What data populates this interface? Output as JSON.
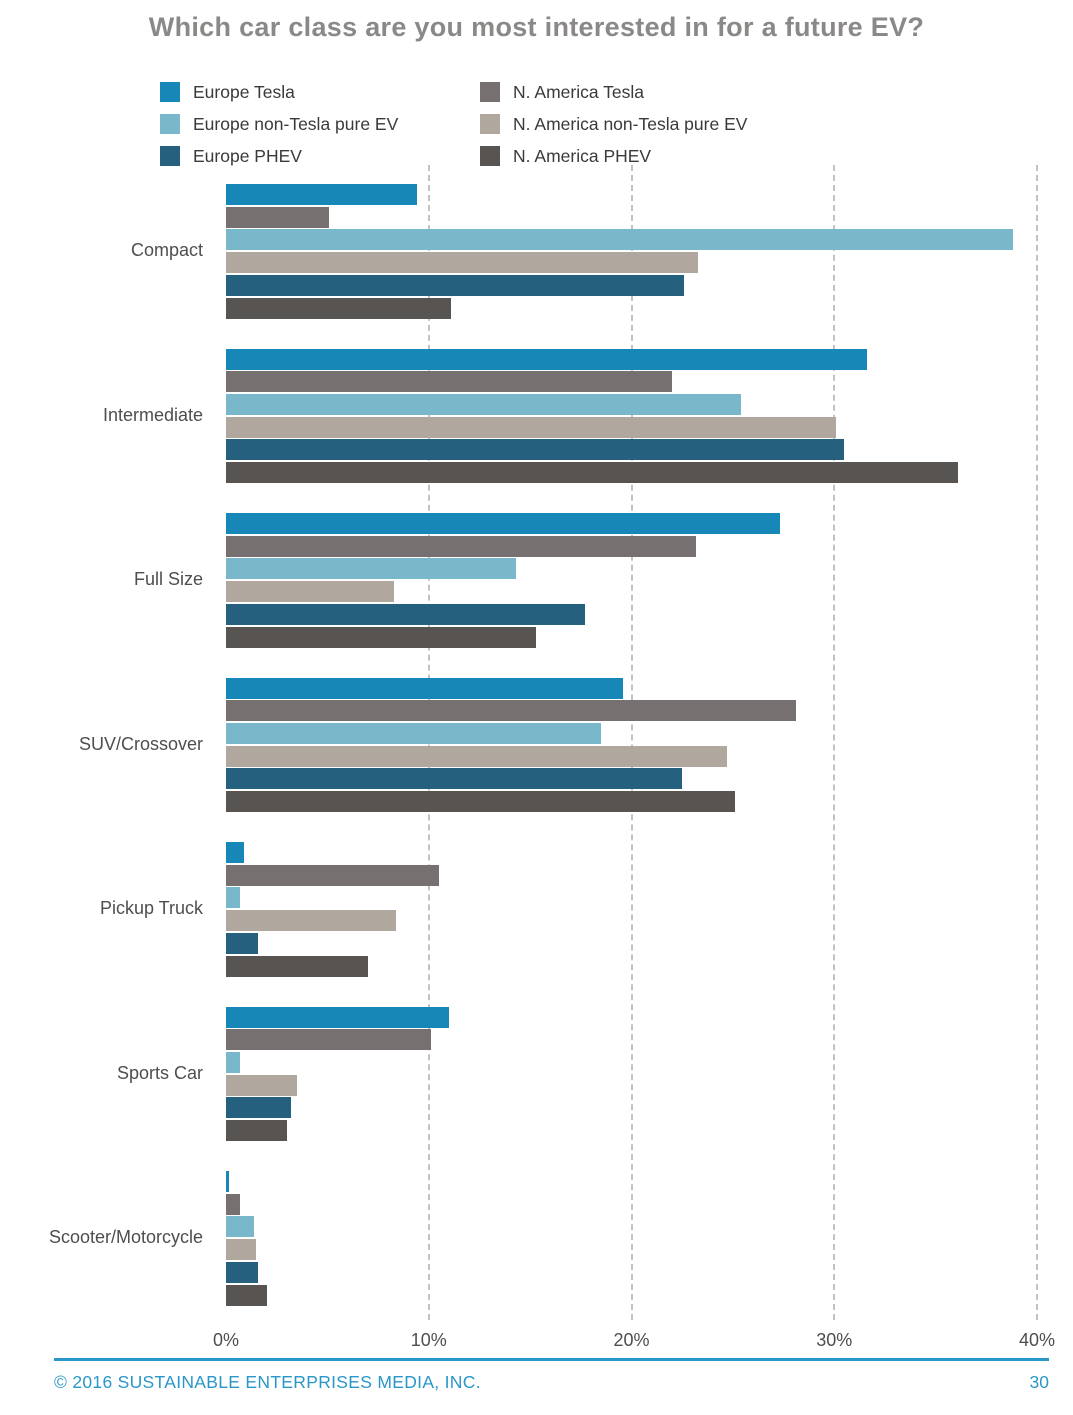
{
  "title": "Which car class are you most interested in for a future EV?",
  "colors": {
    "europe_tesla": "#1787b7",
    "europe_non_tesla": "#79b7ca",
    "europe_phev": "#25617f",
    "na_tesla": "#767170",
    "na_non_tesla": "#b0a79e",
    "na_phev": "#585452",
    "gridline": "#c2c2c2",
    "title_text": "#8a8988",
    "axis_text": "#4e4e4e",
    "footer_accent": "#2a97c9"
  },
  "legend": {
    "columns": [
      [
        {
          "label": "Europe Tesla",
          "color": "europe_tesla"
        },
        {
          "label": "Europe non-Tesla pure EV",
          "color": "europe_non_tesla"
        },
        {
          "label": "Europe PHEV",
          "color": "europe_phev"
        }
      ],
      [
        {
          "label": "N. America Tesla",
          "color": "na_tesla"
        },
        {
          "label": "N. America non-Tesla pure EV",
          "color": "na_non_tesla"
        },
        {
          "label": "N. America PHEV",
          "color": "na_phev"
        }
      ]
    ]
  },
  "chart_data": {
    "type": "bar",
    "orientation": "horizontal",
    "title": "Which car class are you most interested in for a future EV?",
    "categories": [
      "Compact",
      "Intermediate",
      "Full Size",
      "SUV/Crossover",
      "Pickup Truck",
      "Sports Car",
      "Scooter/Motorcycle"
    ],
    "series": [
      {
        "name": "Europe Tesla",
        "color": "europe_tesla",
        "values": [
          9.4,
          31.6,
          27.3,
          19.6,
          0.9,
          11.0,
          0.15
        ]
      },
      {
        "name": "N. America Tesla",
        "color": "na_tesla",
        "values": [
          5.1,
          22.0,
          23.2,
          28.1,
          10.5,
          10.1,
          0.7
        ]
      },
      {
        "name": "Europe non-Tesla pure EV",
        "color": "europe_non_tesla",
        "values": [
          38.8,
          25.4,
          14.3,
          18.5,
          0.7,
          0.7,
          1.4
        ]
      },
      {
        "name": "N. America non-Tesla pure EV",
        "color": "na_non_tesla",
        "values": [
          23.3,
          30.1,
          8.3,
          24.7,
          8.4,
          3.5,
          1.5
        ]
      },
      {
        "name": "Europe PHEV",
        "color": "europe_phev",
        "values": [
          22.6,
          30.5,
          17.7,
          22.5,
          1.6,
          3.2,
          1.6
        ]
      },
      {
        "name": "N. America PHEV",
        "color": "na_phev",
        "values": [
          11.1,
          36.1,
          15.3,
          25.1,
          7.0,
          3.0,
          2.0
        ]
      }
    ],
    "x_ticks": [
      "0%",
      "10%",
      "20%",
      "30%",
      "40%"
    ],
    "xlim": [
      0,
      40
    ],
    "grid": "vertical dashed gridlines at 10%, 20%, 30%, 40%",
    "legend_position": "top, two columns"
  },
  "footer": {
    "copyright": "© 2016   SUSTAINABLE ENTERPRISES MEDIA, INC.",
    "page_number": "30"
  }
}
